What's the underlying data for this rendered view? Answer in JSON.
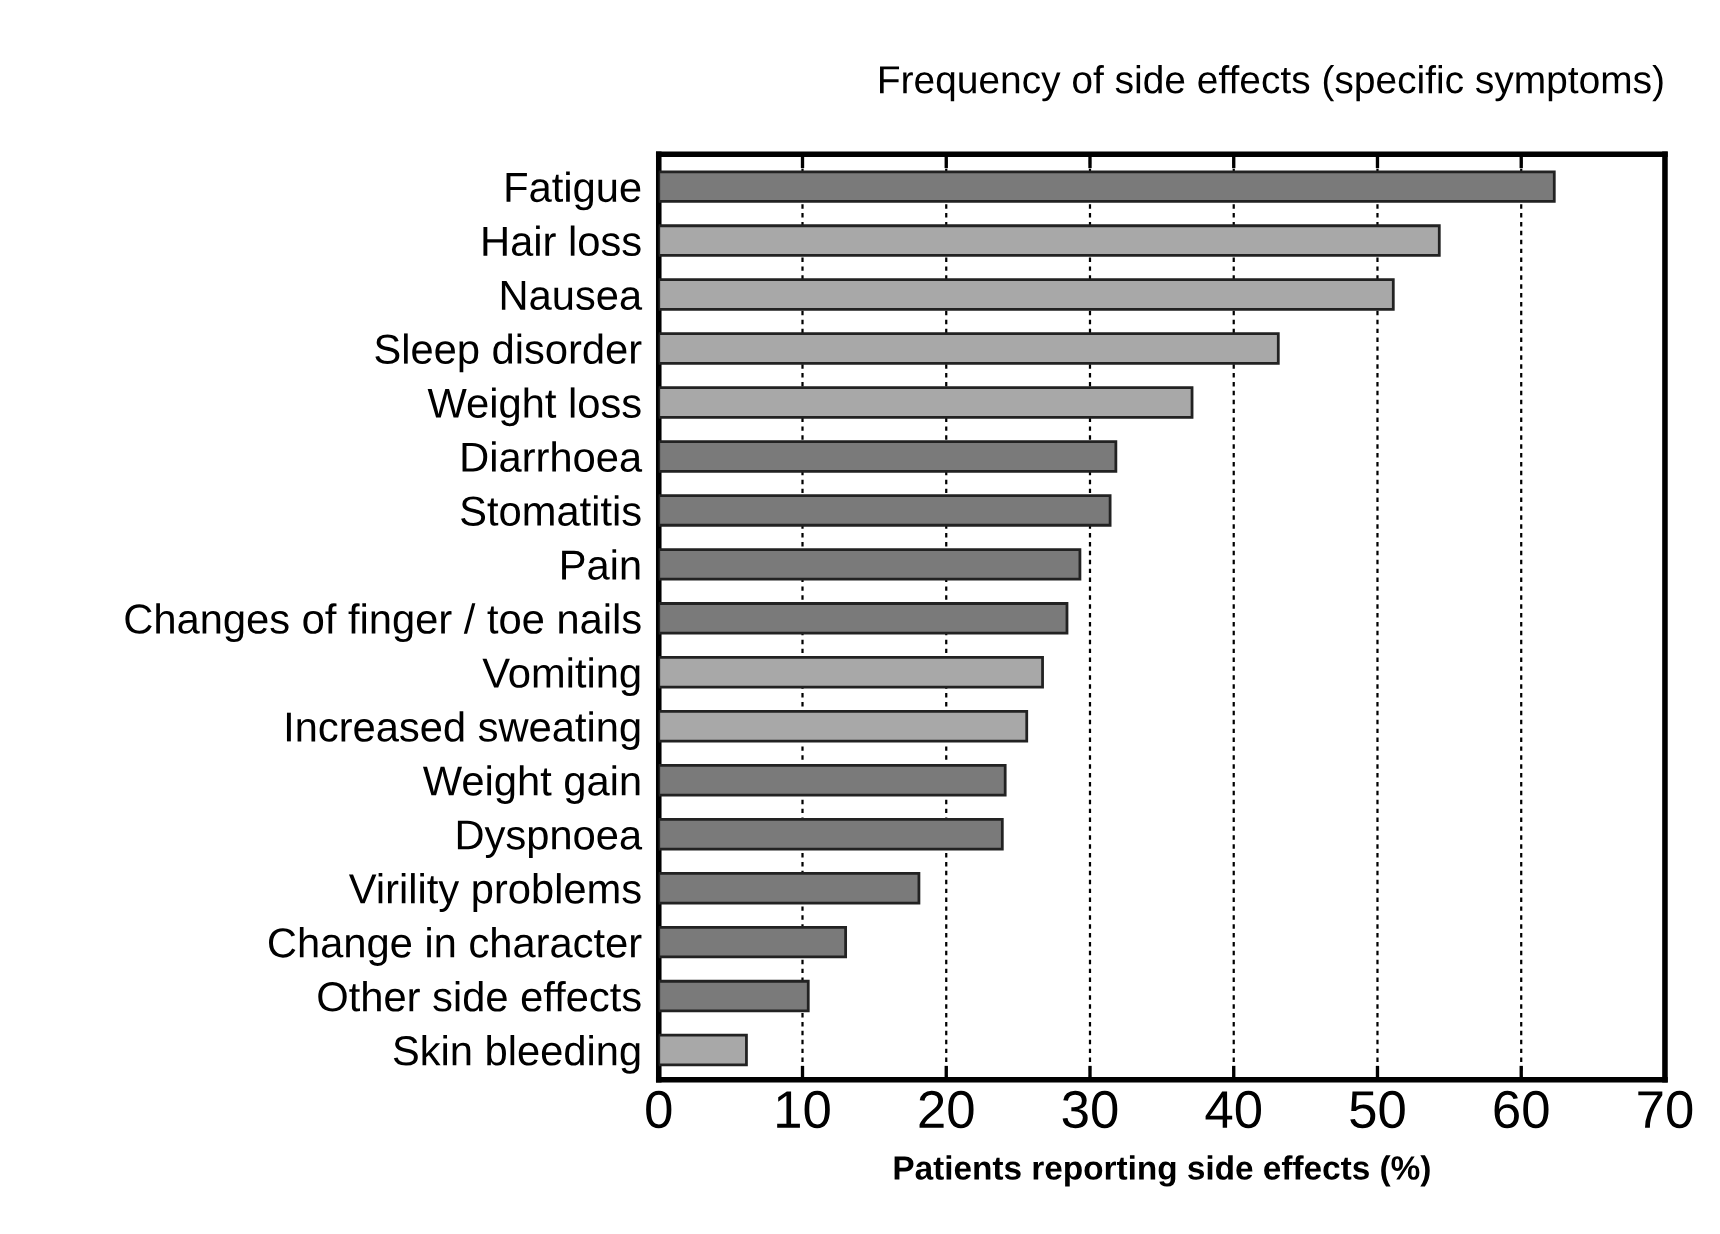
{
  "chart_data": {
    "type": "bar",
    "orientation": "horizontal",
    "title": "Frequency of side effects (specific symptoms)",
    "xlabel": "Patients reporting side effects (%)",
    "categories": [
      "Fatigue",
      "Hair loss",
      "Nausea",
      "Sleep disorder",
      "Weight loss",
      "Diarrhoea",
      "Stomatitis",
      "Pain",
      "Changes of finger / toe nails",
      "Vomiting",
      "Increased sweating",
      "Weight gain",
      "Dyspnoea",
      "Virility problems",
      "Change in character",
      "Other side effects",
      "Skin bleeding"
    ],
    "values": [
      62.3,
      54.3,
      51.1,
      43.1,
      37.1,
      31.8,
      31.4,
      29.3,
      28.4,
      26.7,
      25.6,
      24.1,
      23.9,
      18.1,
      13.0,
      10.4,
      6.1
    ],
    "colors": [
      "#7a7a7a",
      "#a8a8a8",
      "#a8a8a8",
      "#a8a8a8",
      "#a8a8a8",
      "#7a7a7a",
      "#7a7a7a",
      "#7a7a7a",
      "#7a7a7a",
      "#a8a8a8",
      "#a8a8a8",
      "#7a7a7a",
      "#7a7a7a",
      "#7a7a7a",
      "#7a7a7a",
      "#7a7a7a",
      "#a8a8a8"
    ],
    "xlim": [
      0,
      70
    ],
    "xticks": [
      0,
      10,
      20,
      30,
      40,
      50,
      60,
      70
    ],
    "grid": "x"
  }
}
